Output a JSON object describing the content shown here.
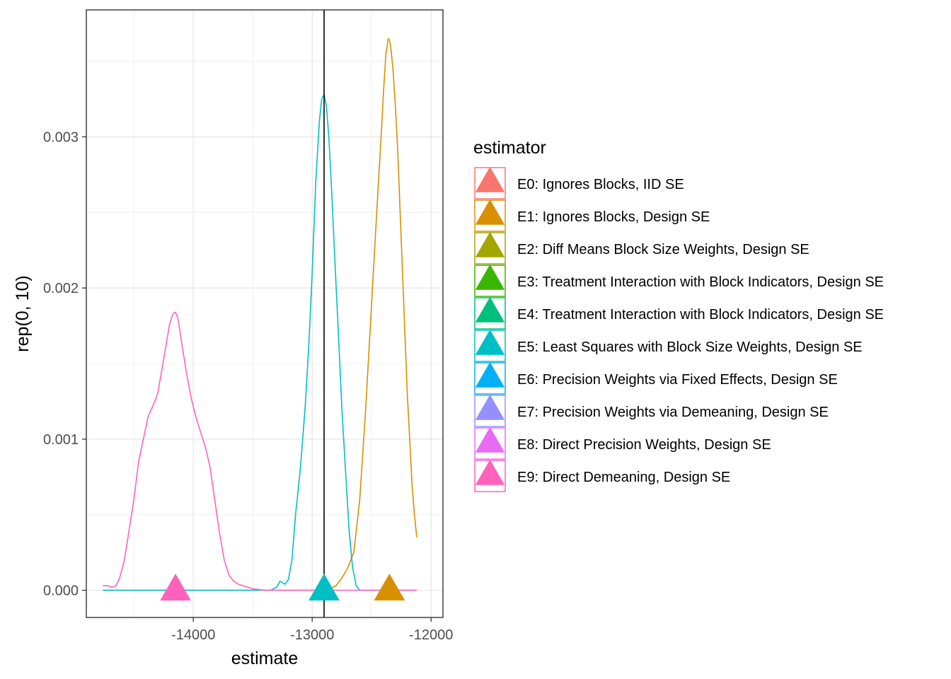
{
  "chart_data": {
    "type": "line",
    "title": "",
    "xlabel": "estimate",
    "ylabel": "rep(0, 10)",
    "xlim": [
      -14900,
      -11900
    ],
    "ylim": [
      -0.00018,
      0.00384
    ],
    "x_ticks": [
      -14000,
      -13000,
      -12000
    ],
    "x_tick_labels": [
      "-14000",
      "-13000",
      "-12000"
    ],
    "y_ticks": [
      0,
      0.001,
      0.002,
      0.003
    ],
    "y_tick_labels": [
      "0.000",
      "0.001",
      "0.002",
      "0.003"
    ],
    "grid": true,
    "vline": -12900,
    "legend": {
      "title": "estimator",
      "placement": "right",
      "entries": [
        {
          "label": "E0: Ignores Blocks, IID SE",
          "color": "#F8766D"
        },
        {
          "label": "E1: Ignores Blocks, Design SE",
          "color": "#D89000"
        },
        {
          "label": "E2: Diff Means Block Size Weights, Design SE",
          "color": "#A3A500"
        },
        {
          "label": "E3: Treatment Interaction with Block Indicators, Design SE",
          "color": "#39B600"
        },
        {
          "label": "E4: Treatment Interaction with Block Indicators, Design SE",
          "color": "#00BF7D"
        },
        {
          "label": "E5: Least Squares with Block Size Weights, Design SE",
          "color": "#00BFC4"
        },
        {
          "label": "E6: Precision Weights via Fixed Effects, Design SE",
          "color": "#00B0F6"
        },
        {
          "label": "E7: Precision Weights via Demeaning, Design SE",
          "color": "#9590FF"
        },
        {
          "label": "E8: Direct Precision Weights, Design SE",
          "color": "#E76BF3"
        },
        {
          "label": "E9: Direct Demeaning, Design SE",
          "color": "#FF62BC"
        }
      ]
    },
    "series": [
      {
        "color": "#D89000",
        "x": [
          -14760,
          -12880,
          -12800,
          -12750,
          -12700,
          -12650,
          -12600,
          -12550,
          -12500,
          -12450,
          -12420,
          -12400,
          -12380,
          -12360,
          -12350,
          -12340,
          -12320,
          -12300,
          -12280,
          -12260,
          -12240,
          -12220,
          -12200,
          -12180,
          -12160,
          -12140,
          -12120
        ],
        "y": [
          0,
          0,
          3e-05,
          8e-05,
          0.00015,
          0.00025,
          0.0006,
          0.0012,
          0.0019,
          0.0026,
          0.003,
          0.0033,
          0.00355,
          0.00365,
          0.00364,
          0.0036,
          0.00345,
          0.0032,
          0.0029,
          0.0025,
          0.0021,
          0.0017,
          0.0013,
          0.001,
          0.0007,
          0.0005,
          0.00035
        ]
      },
      {
        "color": "#00BFC4",
        "x": [
          -14760,
          -13350,
          -13300,
          -13270,
          -13250,
          -13230,
          -13200,
          -13170,
          -13140,
          -13100,
          -13060,
          -13030,
          -13000,
          -12970,
          -12940,
          -12920,
          -12900,
          -12880,
          -12860,
          -12840,
          -12810,
          -12780,
          -12750,
          -12720,
          -12690,
          -12660,
          -12630,
          -12600,
          -12120
        ],
        "y": [
          0,
          0,
          2e-05,
          6e-05,
          5e-05,
          4e-05,
          7e-05,
          0.0002,
          0.0005,
          0.0008,
          0.0012,
          0.0016,
          0.0021,
          0.0027,
          0.0031,
          0.00325,
          0.00328,
          0.0032,
          0.003,
          0.0027,
          0.0022,
          0.0017,
          0.0012,
          0.0008,
          0.0004,
          0.00015,
          3e-05,
          0,
          0
        ]
      },
      {
        "color": "#FF62BC",
        "x": [
          -14760,
          -14720,
          -14680,
          -14650,
          -14620,
          -14580,
          -14540,
          -14500,
          -14460,
          -14420,
          -14380,
          -14340,
          -14300,
          -14260,
          -14230,
          -14200,
          -14170,
          -14150,
          -14130,
          -14100,
          -14060,
          -14020,
          -13980,
          -13940,
          -13900,
          -13860,
          -13820,
          -13780,
          -13740,
          -13700,
          -13660,
          -13620,
          -13580,
          -13540,
          -13500,
          -13450,
          -13400,
          -12120
        ],
        "y": [
          3e-05,
          3e-05,
          2e-05,
          3e-05,
          8e-05,
          0.0002,
          0.0004,
          0.0006,
          0.00085,
          0.001,
          0.00115,
          0.00122,
          0.0013,
          0.00148,
          0.00162,
          0.00176,
          0.00183,
          0.00184,
          0.0018,
          0.00165,
          0.00145,
          0.00128,
          0.00115,
          0.00105,
          0.00095,
          0.00082,
          0.0006,
          0.00038,
          0.0002,
          0.0001,
          6e-05,
          4e-05,
          3e-05,
          2e-05,
          1e-05,
          5e-06,
          0,
          0
        ]
      }
    ],
    "markers": [
      {
        "x": -14150,
        "y": 0,
        "color": "#FF62BC"
      },
      {
        "x": -12900,
        "y": 0,
        "color": "#00BFC4"
      },
      {
        "x": -12350,
        "y": 0,
        "color": "#D89000"
      }
    ]
  }
}
